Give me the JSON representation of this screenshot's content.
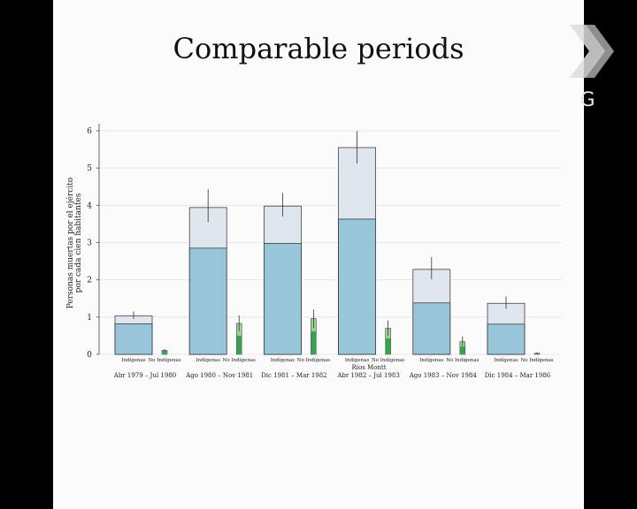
{
  "slide": {
    "title": "Comparable periods"
  },
  "logo": {
    "letter": "G"
  },
  "colors": {
    "indigenous_total": "#dfe6ee",
    "indigenous_part": "#99c5d9",
    "nonindigenous_total": "#9fd19b",
    "nonindigenous_part": "#3a9f4f",
    "edge": "#2a2a2a"
  },
  "chart_data": {
    "type": "bar",
    "ylabel_line1": "Personas muertas por el ejército",
    "ylabel_line2": "por cada cien habitantes",
    "xlabel_center": "Ríos Montt",
    "ylim": [
      0,
      6
    ],
    "yticks": [
      "0",
      "1",
      "2",
      "3",
      "4",
      "5",
      "6"
    ],
    "grid": true,
    "group_labels": [
      "Indígenas",
      "No Indígenas"
    ],
    "periods": [
      "Abr 1979 – Jul 1980",
      "Ago 1980 – Nov 1981",
      "Dic 1981 – Mar 1982",
      "Abr 1982 – Jul 1983",
      "Ago 1983 – Nov 1984",
      "Dic 1984 – Mar 1986"
    ],
    "series": [
      {
        "group": "Indígenas",
        "total": [
          1.03,
          3.94,
          3.98,
          5.55,
          2.28,
          1.37
        ],
        "part": [
          0.82,
          2.85,
          2.98,
          3.63,
          1.38,
          0.81
        ],
        "err_low": [
          0.95,
          3.55,
          3.7,
          5.12,
          2.02,
          1.22
        ],
        "err_high": [
          1.15,
          4.43,
          4.33,
          5.99,
          2.61,
          1.56
        ]
      },
      {
        "group": "No Indígenas",
        "total": [
          0.11,
          0.83,
          0.96,
          0.7,
          0.34,
          0.03
        ],
        "part": [
          0.09,
          0.5,
          0.62,
          0.43,
          0.21,
          0.02
        ],
        "err_low": [
          0.08,
          0.62,
          0.7,
          0.49,
          0.23,
          0.01
        ],
        "err_high": [
          0.14,
          1.05,
          1.2,
          0.91,
          0.48,
          0.05
        ]
      }
    ]
  }
}
